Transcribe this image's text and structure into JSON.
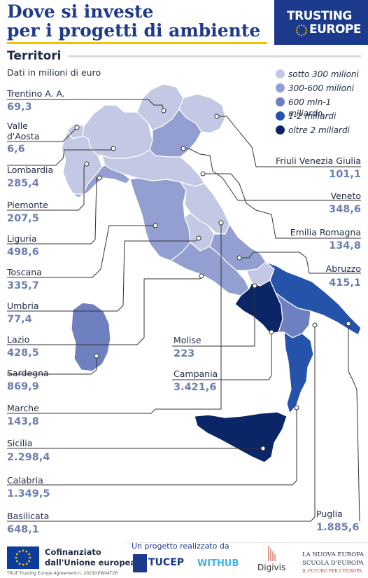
{
  "header": {
    "title_line1": "Dove si investe",
    "title_line2": "per i progetti di ambiente",
    "logo_line1": "TRUSTING",
    "logo_line2": "EUROPE",
    "section": "Territori",
    "subtitle": "Dati in milioni di euro"
  },
  "colors": {
    "c1": "#c3c8e4",
    "c2": "#939fd1",
    "c3": "#6f80c0",
    "c4": "#2653aa",
    "c5": "#0b2667",
    "line": "#333333",
    "value": "#6d7fad",
    "title": "#1e3a8a"
  },
  "legend": [
    {
      "label": "sotto 300 milioni",
      "color": "#c3c8e4"
    },
    {
      "label": "300-600 milioni",
      "color": "#939fd1"
    },
    {
      "label": "600 mln-1 miliardo",
      "color": "#6f80c0"
    },
    {
      "label": "1-2 miliardi",
      "color": "#2653aa"
    },
    {
      "label": "oltre 2 miliardi",
      "color": "#0b2667"
    }
  ],
  "regions": {
    "trentino": {
      "name": "Trentino A. A.",
      "value": "69,3"
    },
    "valle": {
      "name1": "Valle",
      "name2": "d'Aosta",
      "value": "6,6"
    },
    "lombardia": {
      "name": "Lombardia",
      "value": "285,4"
    },
    "piemonte": {
      "name": "Piemonte",
      "value": "207,5"
    },
    "liguria": {
      "name": "Liguria",
      "value": "498,6"
    },
    "toscana": {
      "name": "Toscana",
      "value": "335,7"
    },
    "umbria": {
      "name": "Umbria",
      "value": "77,4"
    },
    "lazio": {
      "name": "Lazio",
      "value": "428,5"
    },
    "sardegna": {
      "name": "Sardegna",
      "value": "869,9"
    },
    "marche": {
      "name": "Marche",
      "value": "143,8"
    },
    "sicilia": {
      "name": "Sicilia",
      "value": "2.298,4"
    },
    "calabria": {
      "name": "Calabria",
      "value": "1.349,5"
    },
    "basilicata": {
      "name": "Basilicata",
      "value": "648,1"
    },
    "friuli": {
      "name": "Friuli Venezia Giulia",
      "value": "101,1"
    },
    "veneto": {
      "name": "Veneto",
      "value": "348,6"
    },
    "emilia": {
      "name": "Emilia Romagna",
      "value": "134,8"
    },
    "abruzzo": {
      "name": "Abruzzo",
      "value": "415,1"
    },
    "molise": {
      "name": "Molise",
      "value": "223"
    },
    "campania": {
      "name": "Campania",
      "value": "3.421,6"
    },
    "puglia": {
      "name": "Puglia",
      "value": "1.885,6"
    }
  },
  "footer": {
    "eu_line1": "Cofinanziato",
    "eu_line2": "dall'Unione europea",
    "agreement": "TRUE Trusting Europe Agreement n. 2023OEW04T2R",
    "project": "Un progetto realizzato da",
    "tucep": "TUCEP",
    "withub": "WITHUB",
    "digivis": "Digivis",
    "nuova_line1": "LA NUOVA EUROPA",
    "nuova_line2": "SCUOLA D'EUROPA",
    "nuova_line3": "IL FUTURO PER L'EUROPA"
  }
}
